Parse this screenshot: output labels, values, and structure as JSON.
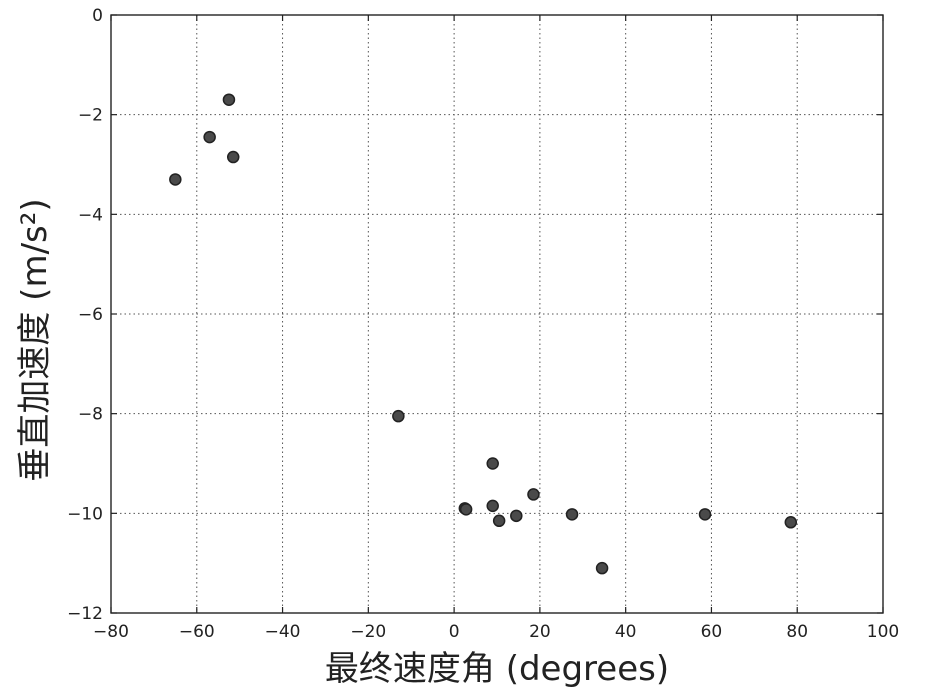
{
  "chart_data": {
    "type": "scatter",
    "xlabel": "最终速度角 (degrees)",
    "ylabel": "垂直加速度 (m/s²)",
    "xlim": [
      -80,
      100
    ],
    "ylim": [
      -12,
      0
    ],
    "xticks": [
      -80,
      -60,
      -40,
      -20,
      0,
      20,
      40,
      60,
      80,
      100
    ],
    "yticks": [
      0,
      -2,
      -4,
      -6,
      -8,
      -10,
      -12
    ],
    "xtick_labels": [
      "−80",
      "−60",
      "−40",
      "−20",
      "0",
      "20",
      "40",
      "60",
      "80",
      "100"
    ],
    "ytick_labels": [
      "0",
      "−2",
      "−4",
      "−6",
      "−8",
      "−10",
      "−12"
    ],
    "grid": true,
    "series": [
      {
        "marker_color": "#4a4a4a",
        "points": [
          {
            "x": -65,
            "y": -3.3
          },
          {
            "x": -57,
            "y": -2.45
          },
          {
            "x": -52.5,
            "y": -1.7
          },
          {
            "x": -51.5,
            "y": -2.85
          },
          {
            "x": -13,
            "y": -8.05
          },
          {
            "x": 2.5,
            "y": -9.9
          },
          {
            "x": 2.8,
            "y": -9.92
          },
          {
            "x": 9,
            "y": -9.0
          },
          {
            "x": 9,
            "y": -9.85
          },
          {
            "x": 10.5,
            "y": -10.15
          },
          {
            "x": 14.5,
            "y": -10.05
          },
          {
            "x": 18.5,
            "y": -9.62
          },
          {
            "x": 27.5,
            "y": -10.02
          },
          {
            "x": 34.5,
            "y": -11.1
          },
          {
            "x": 58.5,
            "y": -10.02
          },
          {
            "x": 78.5,
            "y": -10.18
          }
        ]
      }
    ]
  }
}
